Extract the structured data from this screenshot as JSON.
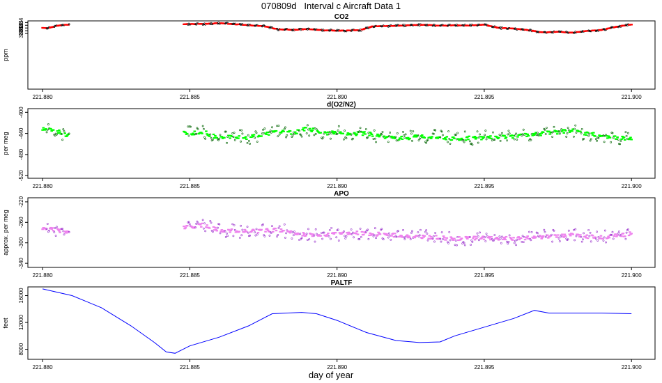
{
  "figure": {
    "title": "070809d   Interval c Aircraft Data 1",
    "xlabel": "day of year"
  },
  "chart_data": [
    {
      "type": "scatter",
      "title": "CO2",
      "ylabel": "ppm",
      "color": "#ff0000",
      "outline_color": "#000000",
      "xlim": [
        221.8795,
        221.9008
      ],
      "ylim": [
        359.6,
        384.6
      ],
      "xticks": [
        "221.880",
        "221.885",
        "221.890",
        "221.895",
        "221.900"
      ],
      "xtick_values": [
        221.88,
        221.885,
        221.89,
        221.895,
        221.9
      ],
      "yticks": [
        "380",
        "381",
        "382",
        "383",
        "384"
      ],
      "ytick_values": [
        380,
        381,
        382,
        383,
        384
      ],
      "noise": 0.25,
      "series": [
        {
          "gap_after_x": 221.8809,
          "points": [
            [
              221.88,
              382.1
            ],
            [
              221.8802,
              382.0
            ],
            [
              221.8804,
              382.6
            ],
            [
              221.8806,
              383.0
            ],
            [
              221.8807,
              383.3
            ],
            [
              221.8809,
              383.2
            ],
            [
              221.8848,
              383.4
            ],
            [
              221.8855,
              383.5
            ],
            [
              221.886,
              383.8
            ],
            [
              221.8865,
              383.4
            ],
            [
              221.887,
              383.0
            ],
            [
              221.8875,
              382.7
            ],
            [
              221.888,
              381.5
            ],
            [
              221.8885,
              381.3
            ],
            [
              221.889,
              381.6
            ],
            [
              221.8895,
              381.2
            ],
            [
              221.89,
              381.0
            ],
            [
              221.8908,
              381.2
            ],
            [
              221.8912,
              382.6
            ],
            [
              221.892,
              382.8
            ],
            [
              221.893,
              383.2
            ],
            [
              221.8935,
              382.8
            ],
            [
              221.894,
              383.0
            ],
            [
              221.8945,
              382.9
            ],
            [
              221.895,
              383.2
            ],
            [
              221.8955,
              382.0
            ],
            [
              221.896,
              381.8
            ],
            [
              221.8965,
              381.2
            ],
            [
              221.897,
              380.4
            ],
            [
              221.8975,
              380.6
            ],
            [
              221.898,
              380.3
            ],
            [
              221.8985,
              380.9
            ],
            [
              221.899,
              381.3
            ],
            [
              221.8993,
              382.0
            ],
            [
              221.8996,
              382.7
            ],
            [
              221.9,
              383.3
            ]
          ]
        }
      ]
    },
    {
      "type": "scatter",
      "title": "d(O2/N2)",
      "ylabel": "per meg",
      "color": "#00ff00",
      "outline_color": "#006400",
      "xlim": [
        221.8795,
        221.9008
      ],
      "ylim": [
        -525,
        -393
      ],
      "xticks": [
        "221.880",
        "221.885",
        "221.890",
        "221.895",
        "221.900"
      ],
      "xtick_values": [
        221.88,
        221.885,
        221.89,
        221.895,
        221.9
      ],
      "yticks": [
        "-400",
        "-440",
        "-480",
        "-520"
      ],
      "ytick_values": [
        -400,
        -440,
        -480,
        -520
      ],
      "noise": 12,
      "series": [
        {
          "gap_after_x": 221.8809,
          "points": [
            [
              221.88,
              -432
            ],
            [
              221.8805,
              -436
            ],
            [
              221.8809,
              -445
            ],
            [
              221.8848,
              -440
            ],
            [
              221.8855,
              -438
            ],
            [
              221.886,
              -450
            ],
            [
              221.8865,
              -445
            ],
            [
              221.887,
              -448
            ],
            [
              221.8875,
              -442
            ],
            [
              221.888,
              -435
            ],
            [
              221.8885,
              -440
            ],
            [
              221.889,
              -430
            ],
            [
              221.8895,
              -440
            ],
            [
              221.89,
              -438
            ],
            [
              221.8905,
              -440
            ],
            [
              221.891,
              -440
            ],
            [
              221.892,
              -450
            ],
            [
              221.893,
              -445
            ],
            [
              221.894,
              -450
            ],
            [
              221.895,
              -448
            ],
            [
              221.896,
              -445
            ],
            [
              221.897,
              -440
            ],
            [
              221.898,
              -435
            ],
            [
              221.899,
              -445
            ],
            [
              221.9,
              -450
            ]
          ]
        }
      ]
    },
    {
      "type": "scatter",
      "title": "APO",
      "ylabel": "approx. per meg",
      "color": "#ee82ee",
      "outline_color": "#9932cc",
      "xlim": [
        221.8795,
        221.9008
      ],
      "ylim": [
        -348,
        -212
      ],
      "xticks": [
        "221.880",
        "221.885",
        "221.890",
        "221.895",
        "221.900"
      ],
      "xtick_values": [
        221.88,
        221.885,
        221.89,
        221.895,
        221.9
      ],
      "yticks": [
        "-220",
        "-260",
        "-300",
        "-340"
      ],
      "ytick_values": [
        -220,
        -260,
        -300,
        -340
      ],
      "noise": 12,
      "series": [
        {
          "gap_after_x": 221.8809,
          "points": [
            [
              221.88,
              -272
            ],
            [
              221.8805,
              -275
            ],
            [
              221.8809,
              -280
            ],
            [
              221.8848,
              -270
            ],
            [
              221.8855,
              -265
            ],
            [
              221.886,
              -275
            ],
            [
              221.887,
              -278
            ],
            [
              221.888,
              -275
            ],
            [
              221.889,
              -285
            ],
            [
              221.89,
              -283
            ],
            [
              221.8905,
              -280
            ],
            [
              221.891,
              -282
            ],
            [
              221.892,
              -285
            ],
            [
              221.893,
              -288
            ],
            [
              221.894,
              -292
            ],
            [
              221.895,
              -290
            ],
            [
              221.896,
              -292
            ],
            [
              221.897,
              -288
            ],
            [
              221.898,
              -285
            ],
            [
              221.899,
              -290
            ],
            [
              221.9,
              -282
            ]
          ]
        }
      ]
    },
    {
      "type": "line",
      "title": "PALTF",
      "ylabel": "feet",
      "color": "#0000ff",
      "xlim": [
        221.8795,
        221.9008
      ],
      "ylim": [
        6500,
        17300
      ],
      "xticks": [
        "221.880",
        "221.885",
        "221.890",
        "221.895",
        "221.900"
      ],
      "xtick_values": [
        221.88,
        221.885,
        221.89,
        221.895,
        221.9
      ],
      "yticks": [
        "8000",
        "12000",
        "16000"
      ],
      "ytick_values": [
        8000,
        12000,
        16000
      ],
      "series": [
        {
          "points": [
            [
              221.88,
              17000
            ],
            [
              221.881,
              16000
            ],
            [
              221.882,
              14200
            ],
            [
              221.883,
              11500
            ],
            [
              221.8838,
              9000
            ],
            [
              221.8842,
              7600
            ],
            [
              221.8845,
              7400
            ],
            [
              221.885,
              8500
            ],
            [
              221.886,
              9800
            ],
            [
              221.887,
              11500
            ],
            [
              221.8878,
              13300
            ],
            [
              221.8888,
              13500
            ],
            [
              221.8893,
              13300
            ],
            [
              221.89,
              12300
            ],
            [
              221.891,
              10500
            ],
            [
              221.892,
              9300
            ],
            [
              221.8928,
              9000
            ],
            [
              221.8935,
              9100
            ],
            [
              221.894,
              10000
            ],
            [
              221.895,
              11300
            ],
            [
              221.896,
              12600
            ],
            [
              221.8967,
              13800
            ],
            [
              221.8972,
              13400
            ],
            [
              221.898,
              13400
            ],
            [
              221.899,
              13400
            ],
            [
              221.9,
              13300
            ]
          ]
        }
      ]
    }
  ]
}
